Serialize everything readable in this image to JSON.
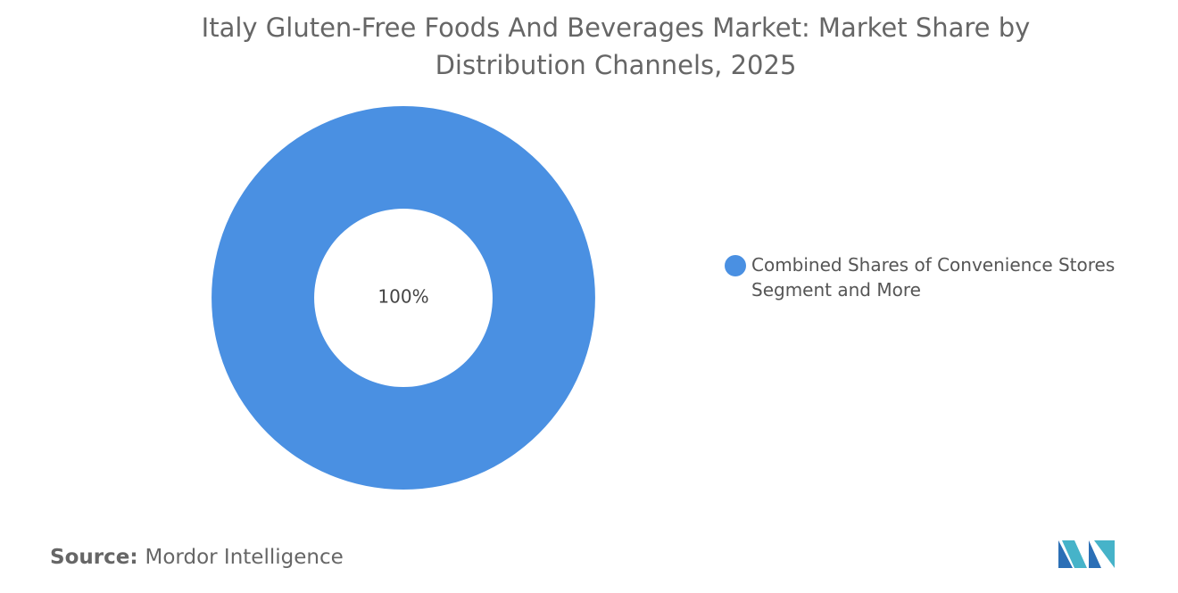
{
  "chart_data": {
    "type": "pie",
    "title": "Italy Gluten-Free Foods And Beverages Market: Market Share by Distribution Channels, 2025",
    "categories": [
      "Combined Shares of Convenience Stores Segment and More"
    ],
    "values": [
      100
    ],
    "value_labels": [
      "100%"
    ],
    "colors": [
      "#4a90e2"
    ],
    "donut": true,
    "legend": "right",
    "source_label": "Source:",
    "source": "Mordor Intelligence"
  }
}
